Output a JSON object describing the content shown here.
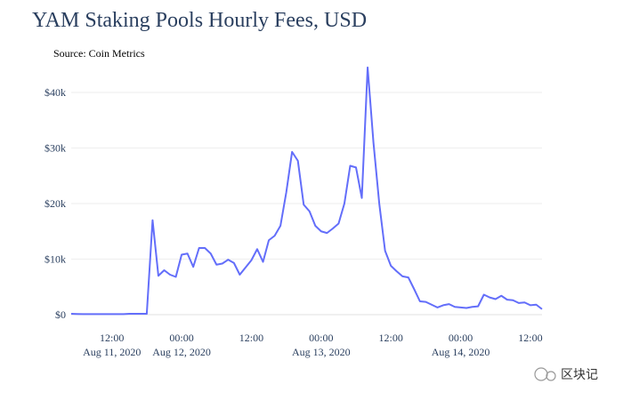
{
  "chart_data": {
    "type": "line",
    "title": "YAM Staking Pools Hourly Fees, USD",
    "annotation": "Source: Coin Metrics",
    "watermark": "区块记",
    "grid": true,
    "x": [
      "2020-08-11T05:00",
      "2020-08-11T06:00",
      "2020-08-11T07:00",
      "2020-08-11T08:00",
      "2020-08-11T09:00",
      "2020-08-11T10:00",
      "2020-08-11T11:00",
      "2020-08-11T12:00",
      "2020-08-11T13:00",
      "2020-08-11T14:00",
      "2020-08-11T15:00",
      "2020-08-11T16:00",
      "2020-08-11T17:00",
      "2020-08-11T18:00",
      "2020-08-11T19:00",
      "2020-08-11T20:00",
      "2020-08-11T21:00",
      "2020-08-11T22:00",
      "2020-08-11T23:00",
      "2020-08-12T00:00",
      "2020-08-12T01:00",
      "2020-08-12T02:00",
      "2020-08-12T03:00",
      "2020-08-12T04:00",
      "2020-08-12T05:00",
      "2020-08-12T06:00",
      "2020-08-12T07:00",
      "2020-08-12T08:00",
      "2020-08-12T09:00",
      "2020-08-12T10:00",
      "2020-08-12T11:00",
      "2020-08-12T12:00",
      "2020-08-12T13:00",
      "2020-08-12T14:00",
      "2020-08-12T15:00",
      "2020-08-12T16:00",
      "2020-08-12T17:00",
      "2020-08-12T18:00",
      "2020-08-12T19:00",
      "2020-08-12T20:00",
      "2020-08-12T21:00",
      "2020-08-12T22:00",
      "2020-08-12T23:00",
      "2020-08-13T00:00",
      "2020-08-13T01:00",
      "2020-08-13T02:00",
      "2020-08-13T03:00",
      "2020-08-13T04:00",
      "2020-08-13T05:00",
      "2020-08-13T06:00",
      "2020-08-13T07:00",
      "2020-08-13T08:00",
      "2020-08-13T09:00",
      "2020-08-13T10:00",
      "2020-08-13T11:00",
      "2020-08-13T12:00",
      "2020-08-13T13:00",
      "2020-08-13T14:00",
      "2020-08-13T15:00",
      "2020-08-13T16:00",
      "2020-08-13T17:00",
      "2020-08-13T18:00",
      "2020-08-13T19:00",
      "2020-08-13T20:00",
      "2020-08-13T21:00",
      "2020-08-13T22:00",
      "2020-08-13T23:00",
      "2020-08-14T00:00",
      "2020-08-14T01:00",
      "2020-08-14T02:00",
      "2020-08-14T03:00",
      "2020-08-14T04:00",
      "2020-08-14T05:00",
      "2020-08-14T06:00",
      "2020-08-14T07:00",
      "2020-08-14T08:00",
      "2020-08-14T09:00",
      "2020-08-14T10:00",
      "2020-08-14T11:00",
      "2020-08-14T12:00",
      "2020-08-14T13:00",
      "2020-08-14T14:00"
    ],
    "series": [
      {
        "name": "Hourly Fees",
        "color": "#636efa",
        "values": [
          150,
          120,
          100,
          100,
          100,
          100,
          100,
          100,
          100,
          100,
          150,
          150,
          150,
          150,
          17000,
          7000,
          8000,
          7200,
          6800,
          10800,
          11000,
          8600,
          12000,
          12000,
          11000,
          9000,
          9200,
          9900,
          9300,
          7200,
          8500,
          9800,
          11800,
          9500,
          13400,
          14200,
          16000,
          22000,
          29300,
          27700,
          19800,
          18600,
          16000,
          15000,
          14700,
          15500,
          16400,
          20000,
          26800,
          26500,
          21000,
          44500,
          31000,
          20000,
          11500,
          8800,
          7800,
          6900,
          6700,
          4600,
          2400,
          2300,
          1800,
          1300,
          1700,
          1900,
          1400,
          1300,
          1200,
          1400,
          1500,
          3600,
          3100,
          2800,
          3400,
          2700,
          2600,
          2100,
          2200,
          1700,
          1800,
          1000
        ]
      }
    ],
    "xlim": [
      "2020-08-11T05:00",
      "2020-08-14T14:00"
    ],
    "xticks": [
      {
        "value": "2020-08-11T12:00",
        "label": "12:00",
        "date": "Aug 11, 2020"
      },
      {
        "value": "2020-08-12T00:00",
        "label": "00:00",
        "date": "Aug 12, 2020"
      },
      {
        "value": "2020-08-12T12:00",
        "label": "12:00"
      },
      {
        "value": "2020-08-13T00:00",
        "label": "00:00",
        "date": "Aug 13, 2020"
      },
      {
        "value": "2020-08-13T12:00",
        "label": "12:00"
      },
      {
        "value": "2020-08-14T00:00",
        "label": "00:00",
        "date": "Aug 14, 2020"
      },
      {
        "value": "2020-08-14T12:00",
        "label": "12:00"
      }
    ],
    "ylim": [
      -2560,
      44640
    ],
    "yticks": [
      {
        "value": 0,
        "label": "$0"
      },
      {
        "value": 10000,
        "label": "$10k"
      },
      {
        "value": 20000,
        "label": "$20k"
      },
      {
        "value": 30000,
        "label": "$30k"
      },
      {
        "value": 40000,
        "label": "$40k"
      }
    ]
  }
}
